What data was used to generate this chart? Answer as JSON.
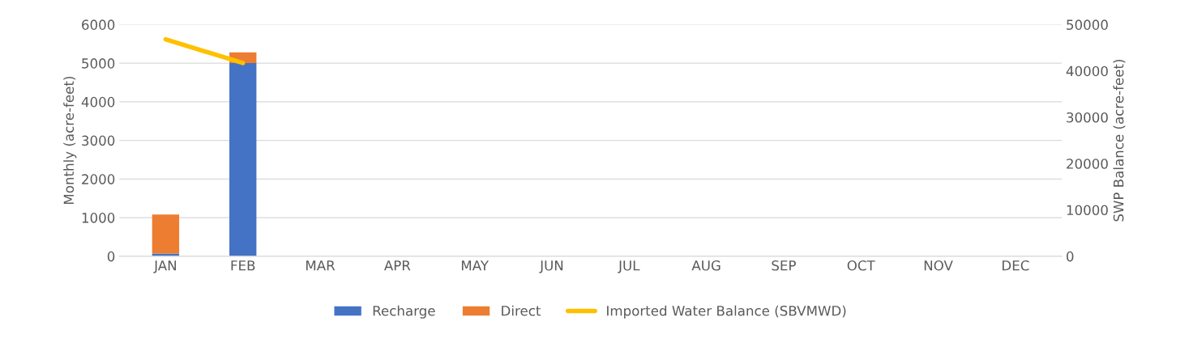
{
  "chart_data": {
    "type": "bar",
    "stacked": true,
    "categories": [
      "JAN",
      "FEB",
      "MAR",
      "APR",
      "MAY",
      "JUN",
      "JUL",
      "AUG",
      "SEP",
      "OCT",
      "NOV",
      "DEC"
    ],
    "ylabel": "Monthly (acre-feet)",
    "y2label": "SWP Balance (acre-feet)",
    "ylim": [
      0,
      6000
    ],
    "yticks": [
      0,
      1000,
      2000,
      3000,
      4000,
      5000,
      6000
    ],
    "y2lim": [
      0,
      50000
    ],
    "y2ticks": [
      0,
      10000,
      20000,
      30000,
      40000,
      50000
    ],
    "grid": "y",
    "legend": "bottom",
    "series": [
      {
        "name": "Recharge",
        "color": "#4472c4",
        "values": [
          70,
          5000,
          null,
          null,
          null,
          null,
          null,
          null,
          null,
          null,
          null,
          null
        ]
      },
      {
        "name": "Direct",
        "color": "#ed7d31",
        "values": [
          1010,
          280,
          null,
          null,
          null,
          null,
          null,
          null,
          null,
          null,
          null,
          null
        ]
      },
      {
        "name": "Imported Water Balance (SBVMWD)",
        "type": "line",
        "axis": "y2",
        "color": "#ffc000",
        "values": [
          46800,
          41700,
          null,
          null,
          null,
          null,
          null,
          null,
          null,
          null,
          null,
          null
        ]
      }
    ]
  }
}
